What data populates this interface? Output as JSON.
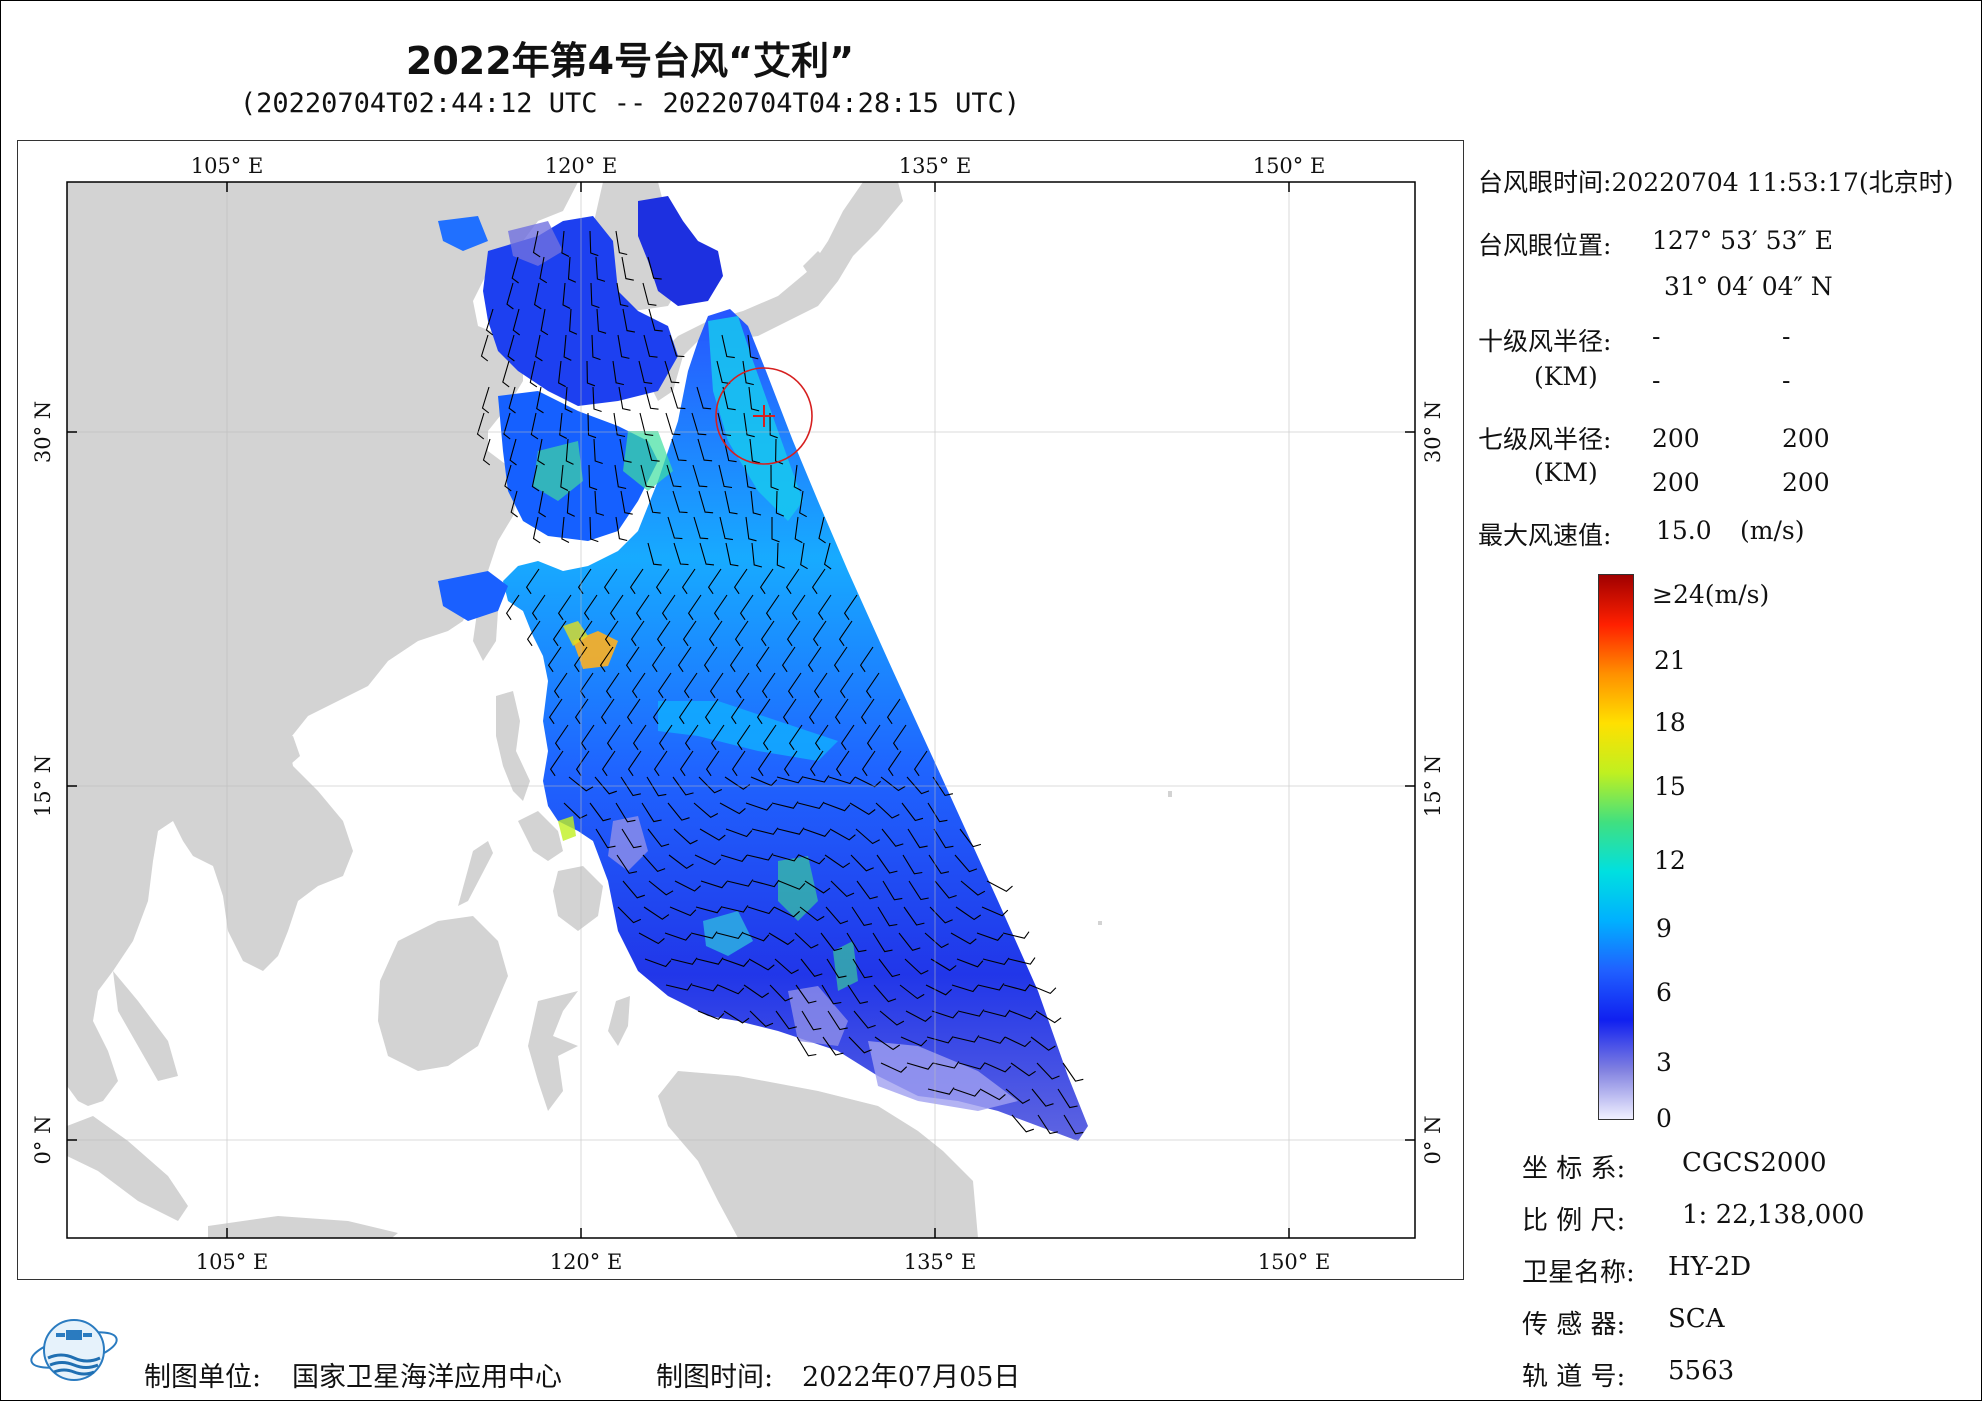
{
  "header": {
    "title": "2022年第4号台风“艾利”",
    "subtitle": "(20220704T02:44:12 UTC -- 20220704T04:28:15 UTC)"
  },
  "map": {
    "lon_ticks": [
      "105° E",
      "120° E",
      "135° E",
      "150° E"
    ],
    "lat_ticks": [
      "30° N",
      "15° N",
      "0° N"
    ],
    "colors": {
      "land": "#d3d3d3",
      "ocean": "#ffffff",
      "eye_marker": "#d62020",
      "wind_barbs": "#000000"
    }
  },
  "typhoon_info": {
    "eye_time_label": "台风眼时间:",
    "eye_time_value": "20220704 11:53:17(北京时)",
    "eye_pos_label": "台风眼位置:",
    "eye_lon": "127° 53′ 53″ E",
    "eye_lat": "31° 04′ 04″ N",
    "r10_label": "十级风半径:",
    "r10_values": [
      "-",
      "-",
      "-",
      "-"
    ],
    "km_label": "(KM)",
    "r7_label": "七级风半径:",
    "r7_values": [
      "200",
      "200",
      "200",
      "200"
    ],
    "max_wind_label": "最大风速值:",
    "max_wind_value": "15.0",
    "max_wind_unit": "(m/s)"
  },
  "colorbar": {
    "top_label": "≥24(m/s)",
    "labels": [
      "21",
      "18",
      "15",
      "12",
      "9",
      "6",
      "3",
      "0"
    ],
    "stops": [
      "#f0f0ff",
      "#8080e0",
      "#1020f0",
      "#2060ff",
      "#00b0ff",
      "#00e0e0",
      "#40e080",
      "#c0f020",
      "#ffe000",
      "#ff9000",
      "#ff2000",
      "#a00000"
    ]
  },
  "metadata": {
    "crs_label": "坐 标 系:",
    "crs_value": "CGCS2000",
    "scale_label": "比 例 尺:",
    "scale_value": "1: 22,138,000",
    "satellite_label": "卫星名称:",
    "satellite_value": "HY-2D",
    "sensor_label": "传 感 器:",
    "sensor_value": "SCA",
    "orbit_label": "轨 道 号:",
    "orbit_value": "5563"
  },
  "footer": {
    "unit_label": "制图单位:",
    "unit_value": "国家卫星海洋应用中心",
    "time_label": "制图时间:",
    "time_value": "2022年07月05日"
  }
}
